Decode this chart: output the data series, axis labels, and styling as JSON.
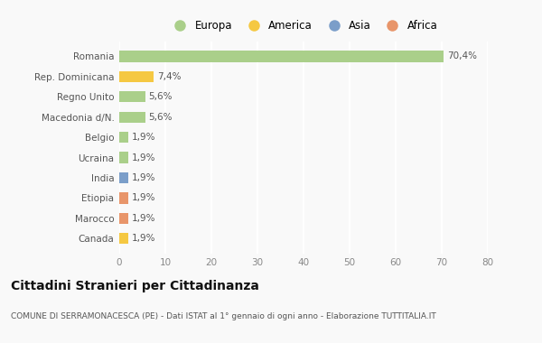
{
  "categories": [
    "Canada",
    "Marocco",
    "Etiopia",
    "India",
    "Ucraina",
    "Belgio",
    "Macedonia d/N.",
    "Regno Unito",
    "Rep. Dominicana",
    "Romania"
  ],
  "values": [
    1.9,
    1.9,
    1.9,
    1.9,
    1.9,
    1.9,
    5.6,
    5.6,
    7.4,
    70.4
  ],
  "labels": [
    "1,9%",
    "1,9%",
    "1,9%",
    "1,9%",
    "1,9%",
    "1,9%",
    "5,6%",
    "5,6%",
    "7,4%",
    "70,4%"
  ],
  "colors": [
    "#f5c842",
    "#e8956a",
    "#e8956a",
    "#7b9ec9",
    "#aacf8a",
    "#aacf8a",
    "#aacf8a",
    "#aacf8a",
    "#f5c842",
    "#aacf8a"
  ],
  "legend": [
    {
      "label": "Europa",
      "color": "#aacf8a"
    },
    {
      "label": "America",
      "color": "#f5c842"
    },
    {
      "label": "Asia",
      "color": "#7b9ec9"
    },
    {
      "label": "Africa",
      "color": "#e8956a"
    }
  ],
  "title": "Cittadini Stranieri per Cittadinanza",
  "subtitle": "COMUNE DI SERRAMONACESCA (PE) - Dati ISTAT al 1° gennaio di ogni anno - Elaborazione TUTTITALIA.IT",
  "xlim": [
    0,
    80
  ],
  "xticks": [
    0,
    10,
    20,
    30,
    40,
    50,
    60,
    70,
    80
  ],
  "background_color": "#f9f9f9",
  "grid_color": "#ffffff",
  "bar_height": 0.55
}
